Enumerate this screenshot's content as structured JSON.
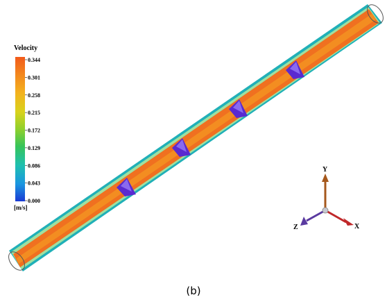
{
  "legend": {
    "title": "Velocity",
    "unit": "[m/s]",
    "ticks": [
      "0.344",
      "0.301",
      "0.258",
      "0.215",
      "0.172",
      "0.129",
      "0.086",
      "0.043",
      "0.000"
    ],
    "colors": [
      "#f25a1a",
      "#f39a1c",
      "#e6c01a",
      "#b8d829",
      "#62c83a",
      "#22c07a",
      "#22c0c0",
      "#1e90e0",
      "#1a3fd6"
    ]
  },
  "axes": {
    "x_label": "X",
    "y_label": "Y",
    "z_label": "Z",
    "x_color": "#c0282a",
    "y_color": "#a5581c",
    "z_color": "#5a3aa0"
  },
  "pipe": {
    "core_color": "#f07020",
    "edge_color": "#20b8b0",
    "blade_color": "#6a2ad8",
    "blade_count": 4
  },
  "caption": "(b)"
}
